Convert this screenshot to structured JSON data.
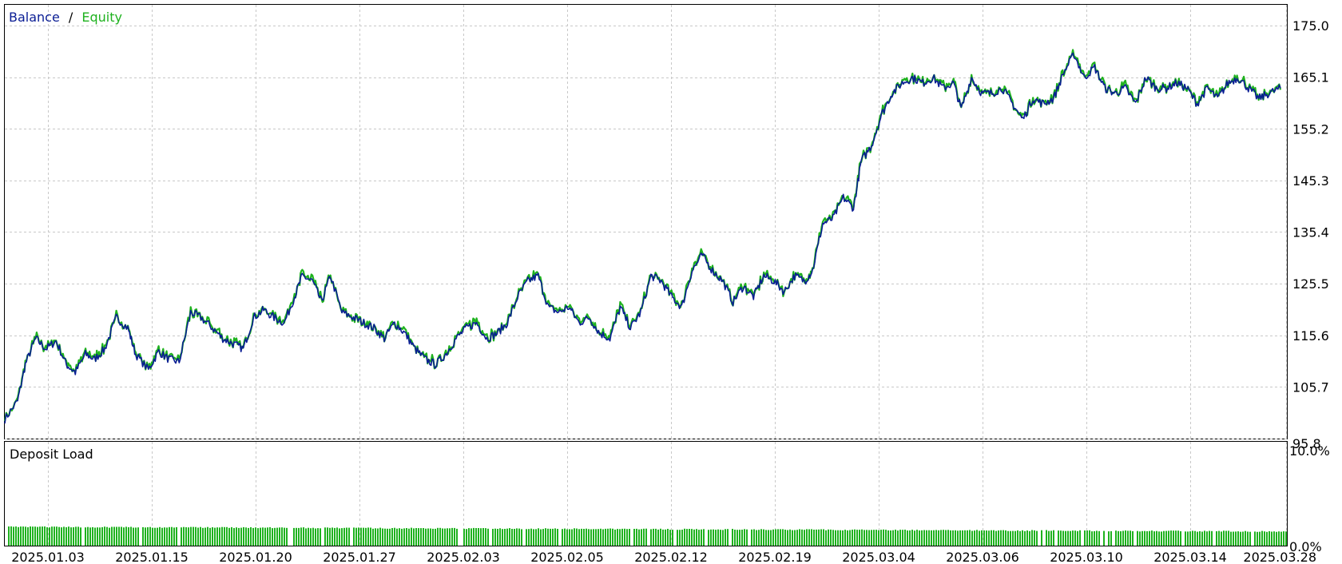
{
  "top_panel": {
    "legend": [
      {
        "label": "Balance",
        "color": "#0a1d94"
      },
      {
        "label": "Equity",
        "color": "#1eb21e"
      }
    ],
    "legend_separator": "/",
    "y_ticks": [
      "175.0",
      "165.1",
      "155.2",
      "145.3",
      "135.4",
      "125.5",
      "115.6",
      "105.7",
      "95.8"
    ],
    "grid": true
  },
  "bottom_panel": {
    "title": "Deposit Load",
    "y_ticks": [
      "10.0%",
      "0.0%"
    ],
    "bar_color": "#1eb21e"
  },
  "x_ticks": [
    "2025.01.03",
    "2025.01.15",
    "2025.01.20",
    "2025.01.27",
    "2025.02.03",
    "2025.02.05",
    "2025.02.12",
    "2025.02.19",
    "2025.03.04",
    "2025.03.06",
    "2025.03.10",
    "2025.03.14",
    "2025.03.28"
  ],
  "chart_data": [
    {
      "type": "line",
      "ylim": [
        95.8,
        175.0
      ],
      "x_ticks": [
        "2025.01.03",
        "2025.01.15",
        "2025.01.20",
        "2025.01.27",
        "2025.02.03",
        "2025.02.05",
        "2025.02.12",
        "2025.02.19",
        "2025.03.04",
        "2025.03.06",
        "2025.03.10",
        "2025.03.14",
        "2025.03.28"
      ],
      "x_range": [
        0,
        100
      ],
      "series": [
        {
          "name": "Balance",
          "color": "#0a1d94"
        },
        {
          "name": "Equity",
          "color": "#1eb21e"
        }
      ],
      "points": [
        [
          0,
          99.5
        ],
        [
          1,
          103
        ],
        [
          1.6,
          110
        ],
        [
          2.4,
          115
        ],
        [
          3.2,
          113
        ],
        [
          4,
          114.5
        ],
        [
          4.8,
          110
        ],
        [
          5.5,
          108.5
        ],
        [
          6.3,
          112
        ],
        [
          7,
          111
        ],
        [
          7.8,
          113
        ],
        [
          8.7,
          119
        ],
        [
          9.6,
          117
        ],
        [
          10.2,
          112
        ],
        [
          11.2,
          109
        ],
        [
          12,
          112.5
        ],
        [
          12.8,
          111
        ],
        [
          13.6,
          110.5
        ],
        [
          14.5,
          120
        ],
        [
          15.3,
          119
        ],
        [
          16.2,
          117
        ],
        [
          17,
          115
        ],
        [
          17.8,
          114
        ],
        [
          18.6,
          113
        ],
        [
          19.4,
          119
        ],
        [
          20.2,
          120.5
        ],
        [
          21,
          119
        ],
        [
          21.8,
          118
        ],
        [
          22.6,
          123
        ],
        [
          23.2,
          127
        ],
        [
          24,
          126
        ],
        [
          24.7,
          122
        ],
        [
          25.4,
          127
        ],
        [
          26.3,
          120
        ],
        [
          27.2,
          119
        ],
        [
          28,
          118
        ],
        [
          28.8,
          117
        ],
        [
          29.6,
          115
        ],
        [
          30.4,
          118
        ],
        [
          31.2,
          116
        ],
        [
          32,
          113
        ],
        [
          32.8,
          111
        ],
        [
          33.6,
          110
        ],
        [
          34.4,
          112
        ],
        [
          35.2,
          115
        ],
        [
          36,
          117
        ],
        [
          36.8,
          118
        ],
        [
          37.6,
          115
        ],
        [
          38.4,
          116
        ],
        [
          39.2,
          118
        ],
        [
          40,
          123
        ],
        [
          40.8,
          126
        ],
        [
          41.6,
          127
        ],
        [
          42.4,
          121
        ],
        [
          43.2,
          120
        ],
        [
          44,
          121
        ],
        [
          44.8,
          118
        ],
        [
          45.6,
          119
        ],
        [
          46.4,
          116
        ],
        [
          47.2,
          115
        ],
        [
          48,
          121
        ],
        [
          48.8,
          117
        ],
        [
          49.6,
          120
        ],
        [
          50.4,
          127
        ],
        [
          51.2,
          126
        ],
        [
          52,
          123
        ],
        [
          52.8,
          121
        ],
        [
          53.6,
          128
        ],
        [
          54.4,
          131
        ],
        [
          55.2,
          128
        ],
        [
          56,
          126
        ],
        [
          56.8,
          122
        ],
        [
          57.6,
          125
        ],
        [
          58.4,
          123
        ],
        [
          59.2,
          127
        ],
        [
          60,
          126
        ],
        [
          60.8,
          124
        ],
        [
          61.6,
          127
        ],
        [
          62.4,
          126
        ],
        [
          63,
          128
        ],
        [
          63.8,
          137
        ],
        [
          64.6,
          138
        ],
        [
          65.4,
          142
        ],
        [
          66.2,
          140
        ],
        [
          66.8,
          149
        ],
        [
          67.6,
          152
        ],
        [
          68.4,
          158
        ],
        [
          69.2,
          162
        ],
        [
          70,
          164
        ],
        [
          70.8,
          165
        ],
        [
          71.6,
          164
        ],
        [
          72.4,
          165
        ],
        [
          73.2,
          163
        ],
        [
          74,
          164
        ],
        [
          74.6,
          159
        ],
        [
          75.4,
          165
        ],
        [
          76.2,
          162
        ],
        [
          77,
          162
        ],
        [
          77.8,
          163
        ],
        [
          78.6,
          160
        ],
        [
          79.4,
          157
        ],
        [
          80.2,
          161
        ],
        [
          81,
          160
        ],
        [
          81.8,
          161
        ],
        [
          82.6,
          166
        ],
        [
          83.4,
          169.5
        ],
        [
          84.2,
          165
        ],
        [
          85,
          167
        ],
        [
          85.8,
          163
        ],
        [
          86.6,
          162
        ],
        [
          87.4,
          163
        ],
        [
          88.2,
          160
        ],
        [
          89,
          165
        ],
        [
          89.8,
          163
        ],
        [
          90.6,
          163
        ],
        [
          91.4,
          164
        ],
        [
          92.2,
          163
        ],
        [
          93,
          160
        ],
        [
          93.8,
          163
        ],
        [
          94.6,
          161
        ],
        [
          95.4,
          164
        ],
        [
          96.2,
          165
        ],
        [
          97,
          163
        ],
        [
          97.8,
          161
        ],
        [
          98.6,
          162
        ],
        [
          99.5,
          163
        ]
      ]
    },
    {
      "type": "bar",
      "title": "Deposit Load",
      "ylim": [
        0.0,
        10.0
      ],
      "bar_level_start": 2.0,
      "bar_level_end": 1.5
    }
  ]
}
